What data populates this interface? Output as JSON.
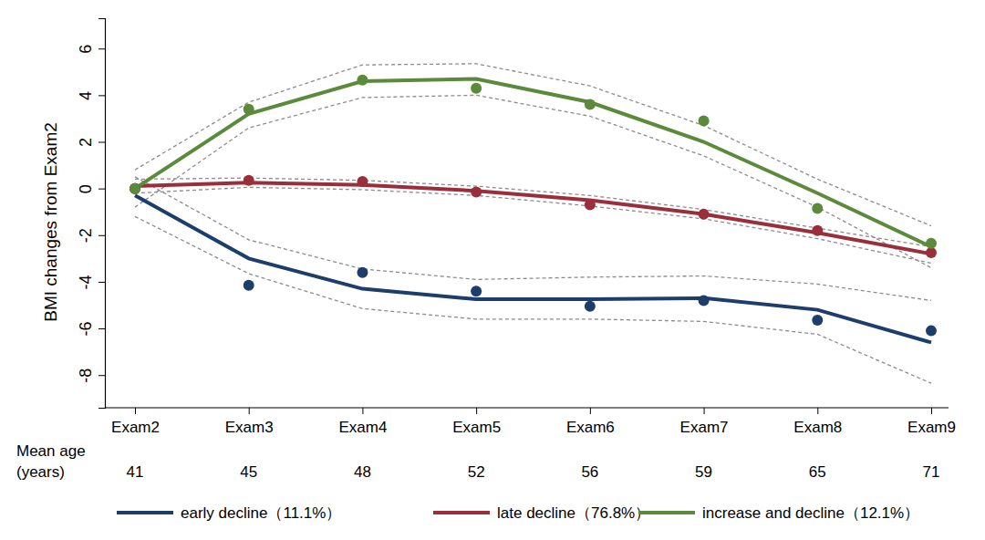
{
  "chart_data": {
    "type": "line",
    "y_label": "BMI changes from Exam2",
    "categories": [
      "Exam2",
      "Exam3",
      "Exam4",
      "Exam5",
      "Exam6",
      "Exam7",
      "Exam8",
      "Exam9"
    ],
    "row_label": [
      "Mean age",
      "(years)"
    ],
    "mean_age": [
      41,
      45,
      48,
      52,
      56,
      59,
      65,
      71
    ],
    "ylim": [
      -9.4,
      7.3
    ],
    "yticks": [
      -8,
      -6,
      -4,
      -2,
      0,
      2,
      4,
      6
    ],
    "grid": false,
    "legend": "bottom",
    "series": [
      {
        "name": "early decline（11.1%）",
        "color": "#1d3d6b",
        "marker": "circle",
        "line_style": "solid",
        "values": [
          -0.3,
          -3.0,
          -4.3,
          -4.75,
          -4.75,
          -4.7,
          -5.2,
          -6.6
        ],
        "observed": [
          0,
          -4.15,
          -3.6,
          -4.4,
          -5.05,
          -4.8,
          -5.65,
          -6.1
        ],
        "ci_upper": [
          0.5,
          -2.2,
          -3.45,
          -3.9,
          -3.8,
          -3.75,
          -4.1,
          -4.8
        ],
        "ci_lower": [
          -1.2,
          -3.65,
          -5.15,
          -5.6,
          -5.6,
          -5.7,
          -6.25,
          -8.35
        ]
      },
      {
        "name": "late decline（76.8%）",
        "color": "#9a2f3b",
        "marker": "circle",
        "line_style": "solid",
        "values": [
          0.1,
          0.25,
          0.15,
          -0.1,
          -0.5,
          -1.1,
          -1.9,
          -2.8
        ],
        "observed": [
          0,
          0.35,
          0.3,
          -0.15,
          -0.7,
          -1.1,
          -1.8,
          -2.75
        ],
        "ci_upper": [
          0.4,
          0.45,
          0.35,
          0.1,
          -0.3,
          -0.9,
          -1.7,
          -2.5
        ],
        "ci_lower": [
          -0.2,
          0.05,
          -0.05,
          -0.3,
          -0.75,
          -1.3,
          -2.15,
          -3.2
        ]
      },
      {
        "name": "increase and decline（12.1%）",
        "color": "#5a8a3a",
        "marker": "circle",
        "line_style": "solid",
        "values": [
          0,
          3.2,
          4.6,
          4.7,
          3.7,
          2.0,
          -0.2,
          -2.5
        ],
        "observed": [
          0,
          3.4,
          4.65,
          4.3,
          3.6,
          2.9,
          -0.85,
          -2.35
        ],
        "ci_upper": [
          0.8,
          3.7,
          5.3,
          5.35,
          4.4,
          2.7,
          0.4,
          -1.6
        ],
        "ci_lower": [
          -0.8,
          2.6,
          3.9,
          4.0,
          3.1,
          1.4,
          -0.8,
          -3.4
        ]
      }
    ]
  }
}
